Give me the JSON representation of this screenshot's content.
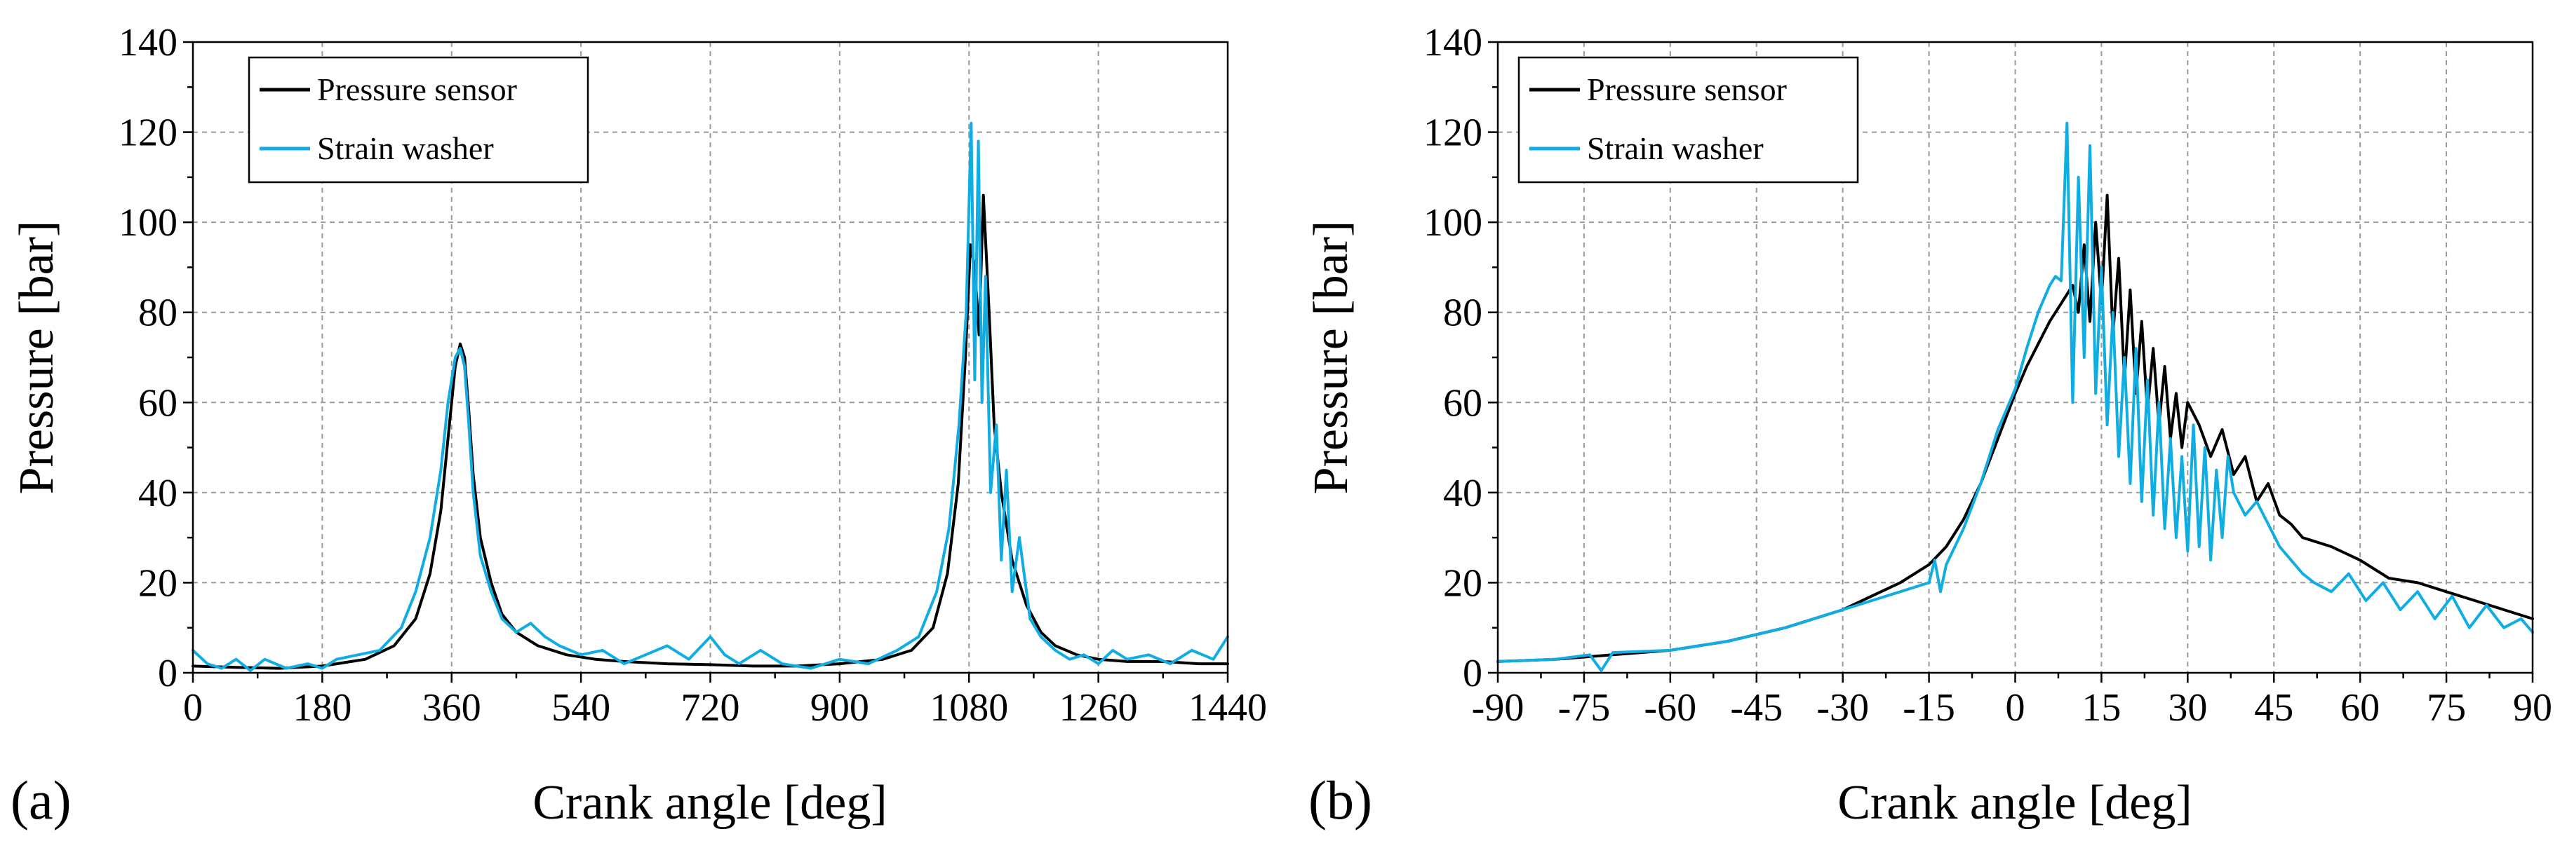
{
  "chart_data": [
    {
      "type": "line",
      "panel_label": "(a)",
      "xlabel": "Crank angle [deg]",
      "ylabel": "Pressure [bar]",
      "xlim": [
        0,
        1440
      ],
      "ylim": [
        0,
        140
      ],
      "xticks": [
        0,
        180,
        360,
        540,
        720,
        900,
        1080,
        1260,
        1440
      ],
      "yticks": [
        0,
        20,
        40,
        60,
        80,
        100,
        120,
        140
      ],
      "grid": true,
      "legend": {
        "placement": "top-left",
        "entries": [
          "Pressure sensor",
          "Strain washer"
        ]
      },
      "series": [
        {
          "name": "Pressure sensor",
          "color": "#000000",
          "x": [
            0,
            60,
            120,
            180,
            240,
            280,
            310,
            330,
            345,
            355,
            365,
            372,
            378,
            384,
            390,
            400,
            415,
            430,
            450,
            480,
            520,
            560,
            600,
            660,
            720,
            780,
            840,
            900,
            960,
            1000,
            1030,
            1050,
            1065,
            1075,
            1082,
            1088,
            1094,
            1100,
            1108,
            1115,
            1125,
            1140,
            1160,
            1180,
            1200,
            1230,
            1260,
            1300,
            1350,
            1400,
            1440
          ],
          "y": [
            1.5,
            1.2,
            1,
            1.5,
            3,
            6,
            12,
            22,
            36,
            52,
            68,
            73,
            70,
            58,
            44,
            30,
            20,
            13,
            9,
            6,
            4,
            3,
            2.5,
            2,
            1.8,
            1.5,
            1.5,
            2,
            3,
            5,
            10,
            22,
            42,
            70,
            95,
            90,
            75,
            106,
            80,
            55,
            40,
            25,
            15,
            9,
            6,
            4,
            3,
            2.5,
            2.5,
            2,
            2
          ]
        },
        {
          "name": "Strain washer",
          "color": "#10ADE3",
          "x": [
            0,
            20,
            40,
            60,
            80,
            100,
            130,
            160,
            180,
            200,
            230,
            260,
            290,
            310,
            330,
            345,
            355,
            365,
            372,
            378,
            384,
            390,
            400,
            415,
            430,
            450,
            470,
            490,
            510,
            540,
            570,
            600,
            630,
            660,
            690,
            720,
            740,
            760,
            790,
            820,
            860,
            900,
            940,
            980,
            1010,
            1035,
            1052,
            1066,
            1076,
            1083,
            1088,
            1093,
            1098,
            1103,
            1110,
            1118,
            1125,
            1132,
            1140,
            1150,
            1165,
            1180,
            1200,
            1220,
            1240,
            1260,
            1280,
            1300,
            1330,
            1360,
            1390,
            1420,
            1440
          ],
          "y": [
            5,
            2,
            1,
            3,
            0.5,
            3,
            1,
            2,
            1,
            3,
            4,
            5,
            10,
            18,
            30,
            45,
            60,
            70,
            72,
            68,
            55,
            40,
            26,
            18,
            12,
            9,
            11,
            8,
            6,
            4,
            5,
            2,
            4,
            6,
            3,
            8,
            4,
            2,
            5,
            2,
            1,
            3,
            2,
            5,
            8,
            18,
            32,
            55,
            80,
            122,
            65,
            118,
            60,
            88,
            40,
            55,
            25,
            45,
            18,
            30,
            12,
            8,
            5,
            3,
            4,
            2,
            5,
            3,
            4,
            2,
            5,
            3,
            8
          ]
        }
      ]
    },
    {
      "type": "line",
      "panel_label": "(b)",
      "xlabel": "Crank angle [deg]",
      "ylabel": "Pressure [bar]",
      "xlim": [
        -90,
        90
      ],
      "ylim": [
        0,
        140
      ],
      "xticks": [
        -90,
        -75,
        -60,
        -45,
        -30,
        -15,
        0,
        15,
        30,
        45,
        60,
        75,
        90
      ],
      "yticks": [
        0,
        20,
        40,
        60,
        80,
        100,
        120,
        140
      ],
      "grid": true,
      "legend": {
        "placement": "top-left",
        "entries": [
          "Pressure sensor",
          "Strain washer"
        ]
      },
      "series": [
        {
          "name": "Pressure sensor",
          "color": "#000000",
          "x": [
            -90,
            -80,
            -70,
            -60,
            -50,
            -40,
            -30,
            -25,
            -20,
            -15,
            -12,
            -9,
            -6,
            -3,
            0,
            2,
            4,
            6,
            8,
            9,
            10,
            11,
            12,
            13,
            14,
            15,
            16,
            17,
            18,
            19,
            20,
            21,
            22,
            23,
            24,
            25,
            26,
            27,
            28,
            29,
            30,
            32,
            34,
            36,
            38,
            40,
            42,
            44,
            46,
            48,
            50,
            55,
            60,
            65,
            70,
            75,
            80,
            85,
            90
          ],
          "y": [
            2.5,
            3,
            4,
            5,
            7,
            10,
            14,
            17,
            20,
            24,
            28,
            34,
            42,
            52,
            62,
            68,
            73,
            78,
            82,
            84,
            86,
            80,
            95,
            78,
            100,
            82,
            106,
            75,
            92,
            65,
            85,
            62,
            78,
            58,
            72,
            55,
            68,
            52,
            62,
            50,
            60,
            55,
            48,
            54,
            44,
            48,
            38,
            42,
            35,
            33,
            30,
            28,
            25,
            21,
            20,
            18,
            16,
            14,
            12
          ]
        },
        {
          "name": "Strain washer",
          "color": "#10ADE3",
          "x": [
            -90,
            -80,
            -74,
            -72,
            -70,
            -60,
            -50,
            -40,
            -30,
            -25,
            -20,
            -15,
            -14,
            -13,
            -12,
            -9,
            -6,
            -3,
            0,
            2,
            4,
            6,
            7,
            8,
            9,
            10,
            11,
            12,
            13,
            14,
            15,
            16,
            17,
            18,
            19,
            20,
            21,
            22,
            23,
            24,
            25,
            26,
            27,
            28,
            29,
            30,
            31,
            32,
            33,
            34,
            35,
            36,
            37,
            38,
            40,
            42,
            44,
            46,
            48,
            50,
            52,
            55,
            58,
            61,
            64,
            67,
            70,
            73,
            76,
            79,
            82,
            85,
            88,
            90
          ],
          "y": [
            2.5,
            3,
            4,
            0.5,
            4.5,
            5,
            7,
            10,
            14,
            16,
            18,
            20,
            25,
            18,
            24,
            32,
            42,
            54,
            63,
            72,
            80,
            86,
            88,
            87,
            122,
            60,
            110,
            70,
            117,
            62,
            90,
            55,
            80,
            48,
            70,
            42,
            72,
            38,
            65,
            35,
            60,
            32,
            52,
            30,
            48,
            27,
            55,
            28,
            50,
            25,
            45,
            30,
            48,
            40,
            35,
            38,
            33,
            28,
            25,
            22,
            20,
            18,
            22,
            16,
            20,
            14,
            18,
            12,
            17,
            10,
            15,
            10,
            12,
            9
          ]
        }
      ]
    }
  ]
}
